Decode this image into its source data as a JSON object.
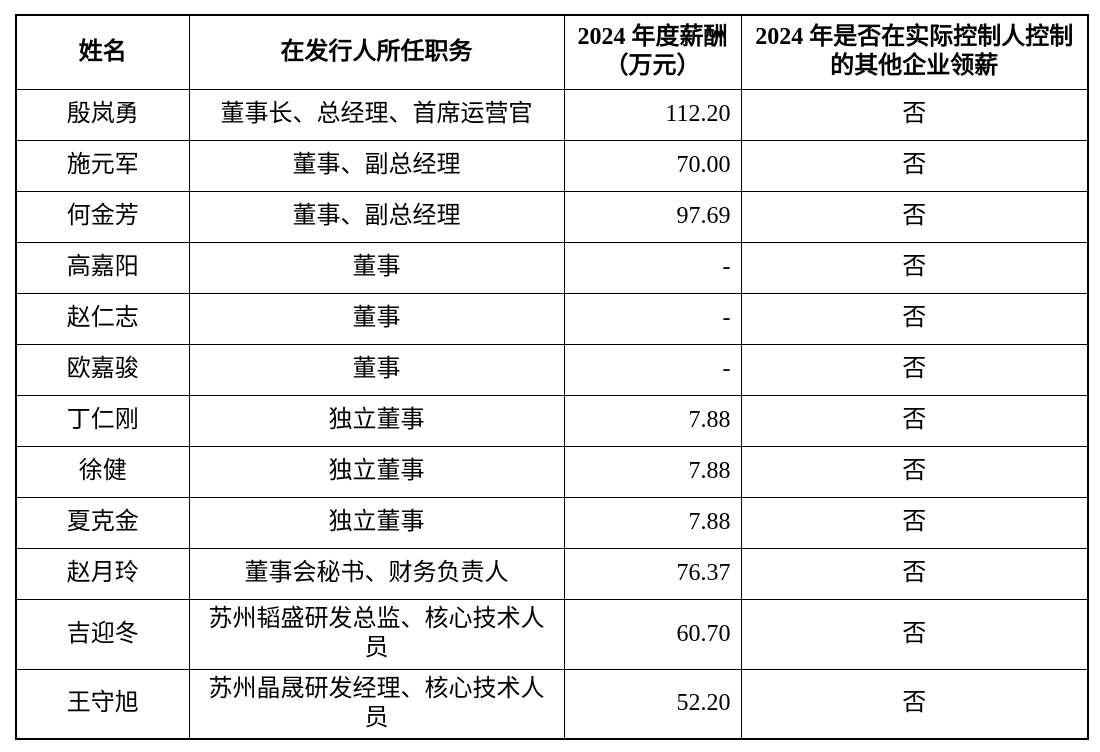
{
  "table": {
    "headers": [
      "姓名",
      "在发行人所任职务",
      "2024 年度薪酬（万元）",
      "2024 年是否在实际控制人控制的其他企业领薪"
    ],
    "rows": [
      [
        "殷岚勇",
        "董事长、总经理、首席运营官",
        "112.20",
        "否"
      ],
      [
        "施元军",
        "董事、副总经理",
        "70.00",
        "否"
      ],
      [
        "何金芳",
        "董事、副总经理",
        "97.69",
        "否"
      ],
      [
        "高嘉阳",
        "董事",
        "-",
        "否"
      ],
      [
        "赵仁志",
        "董事",
        "-",
        "否"
      ],
      [
        "欧嘉骏",
        "董事",
        "-",
        "否"
      ],
      [
        "丁仁刚",
        "独立董事",
        "7.88",
        "否"
      ],
      [
        "徐健",
        "独立董事",
        "7.88",
        "否"
      ],
      [
        "夏克金",
        "独立董事",
        "7.88",
        "否"
      ],
      [
        "赵月玲",
        "董事会秘书、财务负责人",
        "76.37",
        "否"
      ],
      [
        "吉迎冬",
        "苏州韬盛研发总监、核心技术人员",
        "60.70",
        "否"
      ],
      [
        "王守旭",
        "苏州晶晟研发经理、核心技术人员",
        "52.20",
        "否"
      ]
    ]
  }
}
